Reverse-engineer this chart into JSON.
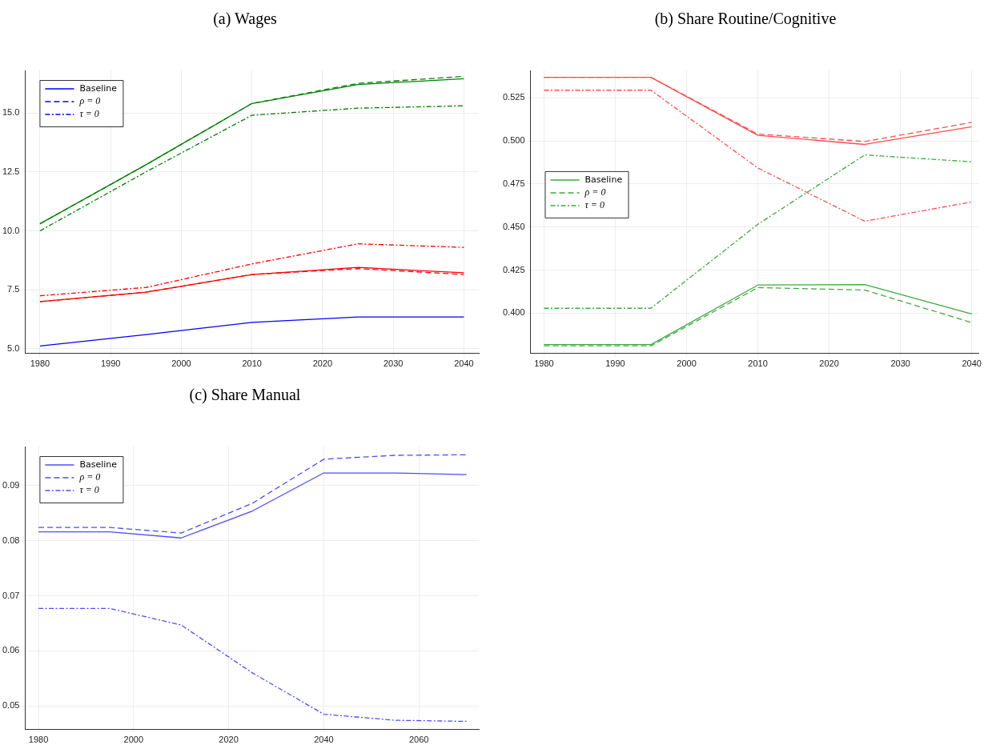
{
  "chart_data": [
    {
      "type": "line",
      "title": "(a) Wages",
      "x": [
        1980,
        1995,
        2010,
        2025,
        2040
      ],
      "xlim": [
        1977.9,
        2042.1
      ],
      "xticks": [
        1980,
        1990,
        2000,
        2010,
        2020,
        2030,
        2040
      ],
      "ylim": [
        4.8,
        16.8
      ],
      "yticks": [
        {
          "value": 5,
          "label": "5.0"
        },
        7.5,
        {
          "value": 10,
          "label": "10.0"
        },
        12.5,
        {
          "value": 15,
          "label": "15.0"
        }
      ],
      "grid": true,
      "legend": "top left",
      "series": [
        {
          "name": "Baseline",
          "color": "#0000ff",
          "line_style": "solid",
          "values": [
            5.12,
            5.6,
            6.12,
            6.35,
            6.35
          ]
        },
        {
          "name": "ρ = 0",
          "color": "#0000ff",
          "line_style": "dashed",
          "values": [
            null,
            null,
            null,
            null,
            null
          ]
        },
        {
          "name": "τ = 0",
          "color": "#0000ff",
          "line_style": "dashdot",
          "values": [
            null,
            null,
            null,
            null,
            null
          ]
        },
        {
          "color": "#008000",
          "line_style": "solid",
          "values": [
            10.3,
            12.8,
            15.4,
            16.2,
            16.45
          ]
        },
        {
          "color": "#008000",
          "line_style": "dashed",
          "values": [
            10.3,
            12.8,
            15.4,
            16.25,
            16.55
          ]
        },
        {
          "color": "#008000",
          "line_style": "dashdot",
          "values": [
            10.0,
            12.5,
            14.9,
            15.2,
            15.3
          ]
        },
        {
          "color": "#ff0000",
          "line_style": "solid",
          "values": [
            7.0,
            7.4,
            8.15,
            8.45,
            8.22
          ]
        },
        {
          "color": "#ff0000",
          "line_style": "dashed",
          "values": [
            7.0,
            7.4,
            8.15,
            8.4,
            8.15
          ]
        },
        {
          "color": "#ff0000",
          "line_style": "dashdot",
          "values": [
            7.25,
            7.6,
            8.6,
            9.45,
            9.3
          ]
        }
      ]
    },
    {
      "type": "line",
      "title": "(b) Share Routine/Cognitive",
      "x": [
        1980,
        1995,
        2010,
        2025,
        2040
      ],
      "xlim": [
        1978.1,
        2041
      ],
      "xticks": [
        1980,
        1990,
        2000,
        2010,
        2020,
        2030,
        2040
      ],
      "ylim": [
        0.3765,
        0.541
      ],
      "yticks": [
        {
          "value": 0.4,
          "label": "0.400"
        },
        {
          "value": 0.425,
          "label": "0.425"
        },
        {
          "value": 0.45,
          "label": "0.450"
        },
        {
          "value": 0.475,
          "label": "0.475"
        },
        {
          "value": 0.5,
          "label": "0.500"
        },
        {
          "value": 0.525,
          "label": "0.525"
        }
      ],
      "grid": true,
      "legend": "left",
      "series": [
        {
          "name": "Baseline",
          "color": "#3cab3c",
          "line_style": "solid",
          "values": [
            0.3817,
            0.3817,
            0.4163,
            0.4166,
            0.3995
          ]
        },
        {
          "name": "ρ = 0",
          "color": "#3cab3c",
          "line_style": "dashed",
          "values": [
            0.381,
            0.381,
            0.4148,
            0.4134,
            0.3945
          ]
        },
        {
          "name": "τ = 0",
          "color": "#3cab3c",
          "line_style": "dashdot",
          "values": [
            0.4028,
            0.4028,
            0.4516,
            0.4919,
            0.4879
          ]
        },
        {
          "color": "#ff4d4d",
          "line_style": "solid",
          "values": [
            0.537,
            0.537,
            0.5033,
            0.498,
            0.5083
          ]
        },
        {
          "color": "#ff4d4d",
          "line_style": "dashed",
          "values": [
            0.537,
            0.537,
            0.504,
            0.4997,
            0.5108
          ]
        },
        {
          "color": "#ff4d4d",
          "line_style": "dashdot",
          "values": [
            0.5295,
            0.5295,
            0.4843,
            0.4534,
            0.4646
          ]
        }
      ]
    },
    {
      "type": "line",
      "title": "(c) Share Manual",
      "x": [
        1980,
        1995,
        2010,
        2025,
        2040,
        2055,
        2070
      ],
      "xlim": [
        1977.2,
        2072.6
      ],
      "xticks": [
        1980,
        2000,
        2020,
        2040,
        2060
      ],
      "ylim": [
        0.0457,
        0.0971
      ],
      "yticks": [
        0.05,
        0.06,
        0.07,
        0.08,
        0.09
      ],
      "grid": true,
      "legend": "top left",
      "series": [
        {
          "name": "Baseline",
          "color": "#4d4dff",
          "line_style": "solid",
          "values": [
            0.0816,
            0.0816,
            0.0805,
            0.0854,
            0.0923,
            0.0923,
            0.092
          ]
        },
        {
          "name": "ρ = 0",
          "color": "#4d4dff",
          "line_style": "dashed",
          "values": [
            0.0824,
            0.0824,
            0.0814,
            0.0868,
            0.0948,
            0.0955,
            0.0956
          ]
        },
        {
          "name": "τ = 0",
          "color": "#4d4dff",
          "line_style": "dashdot",
          "values": [
            0.0677,
            0.0677,
            0.0647,
            0.056,
            0.0485,
            0.0474,
            0.0472
          ]
        }
      ]
    }
  ]
}
